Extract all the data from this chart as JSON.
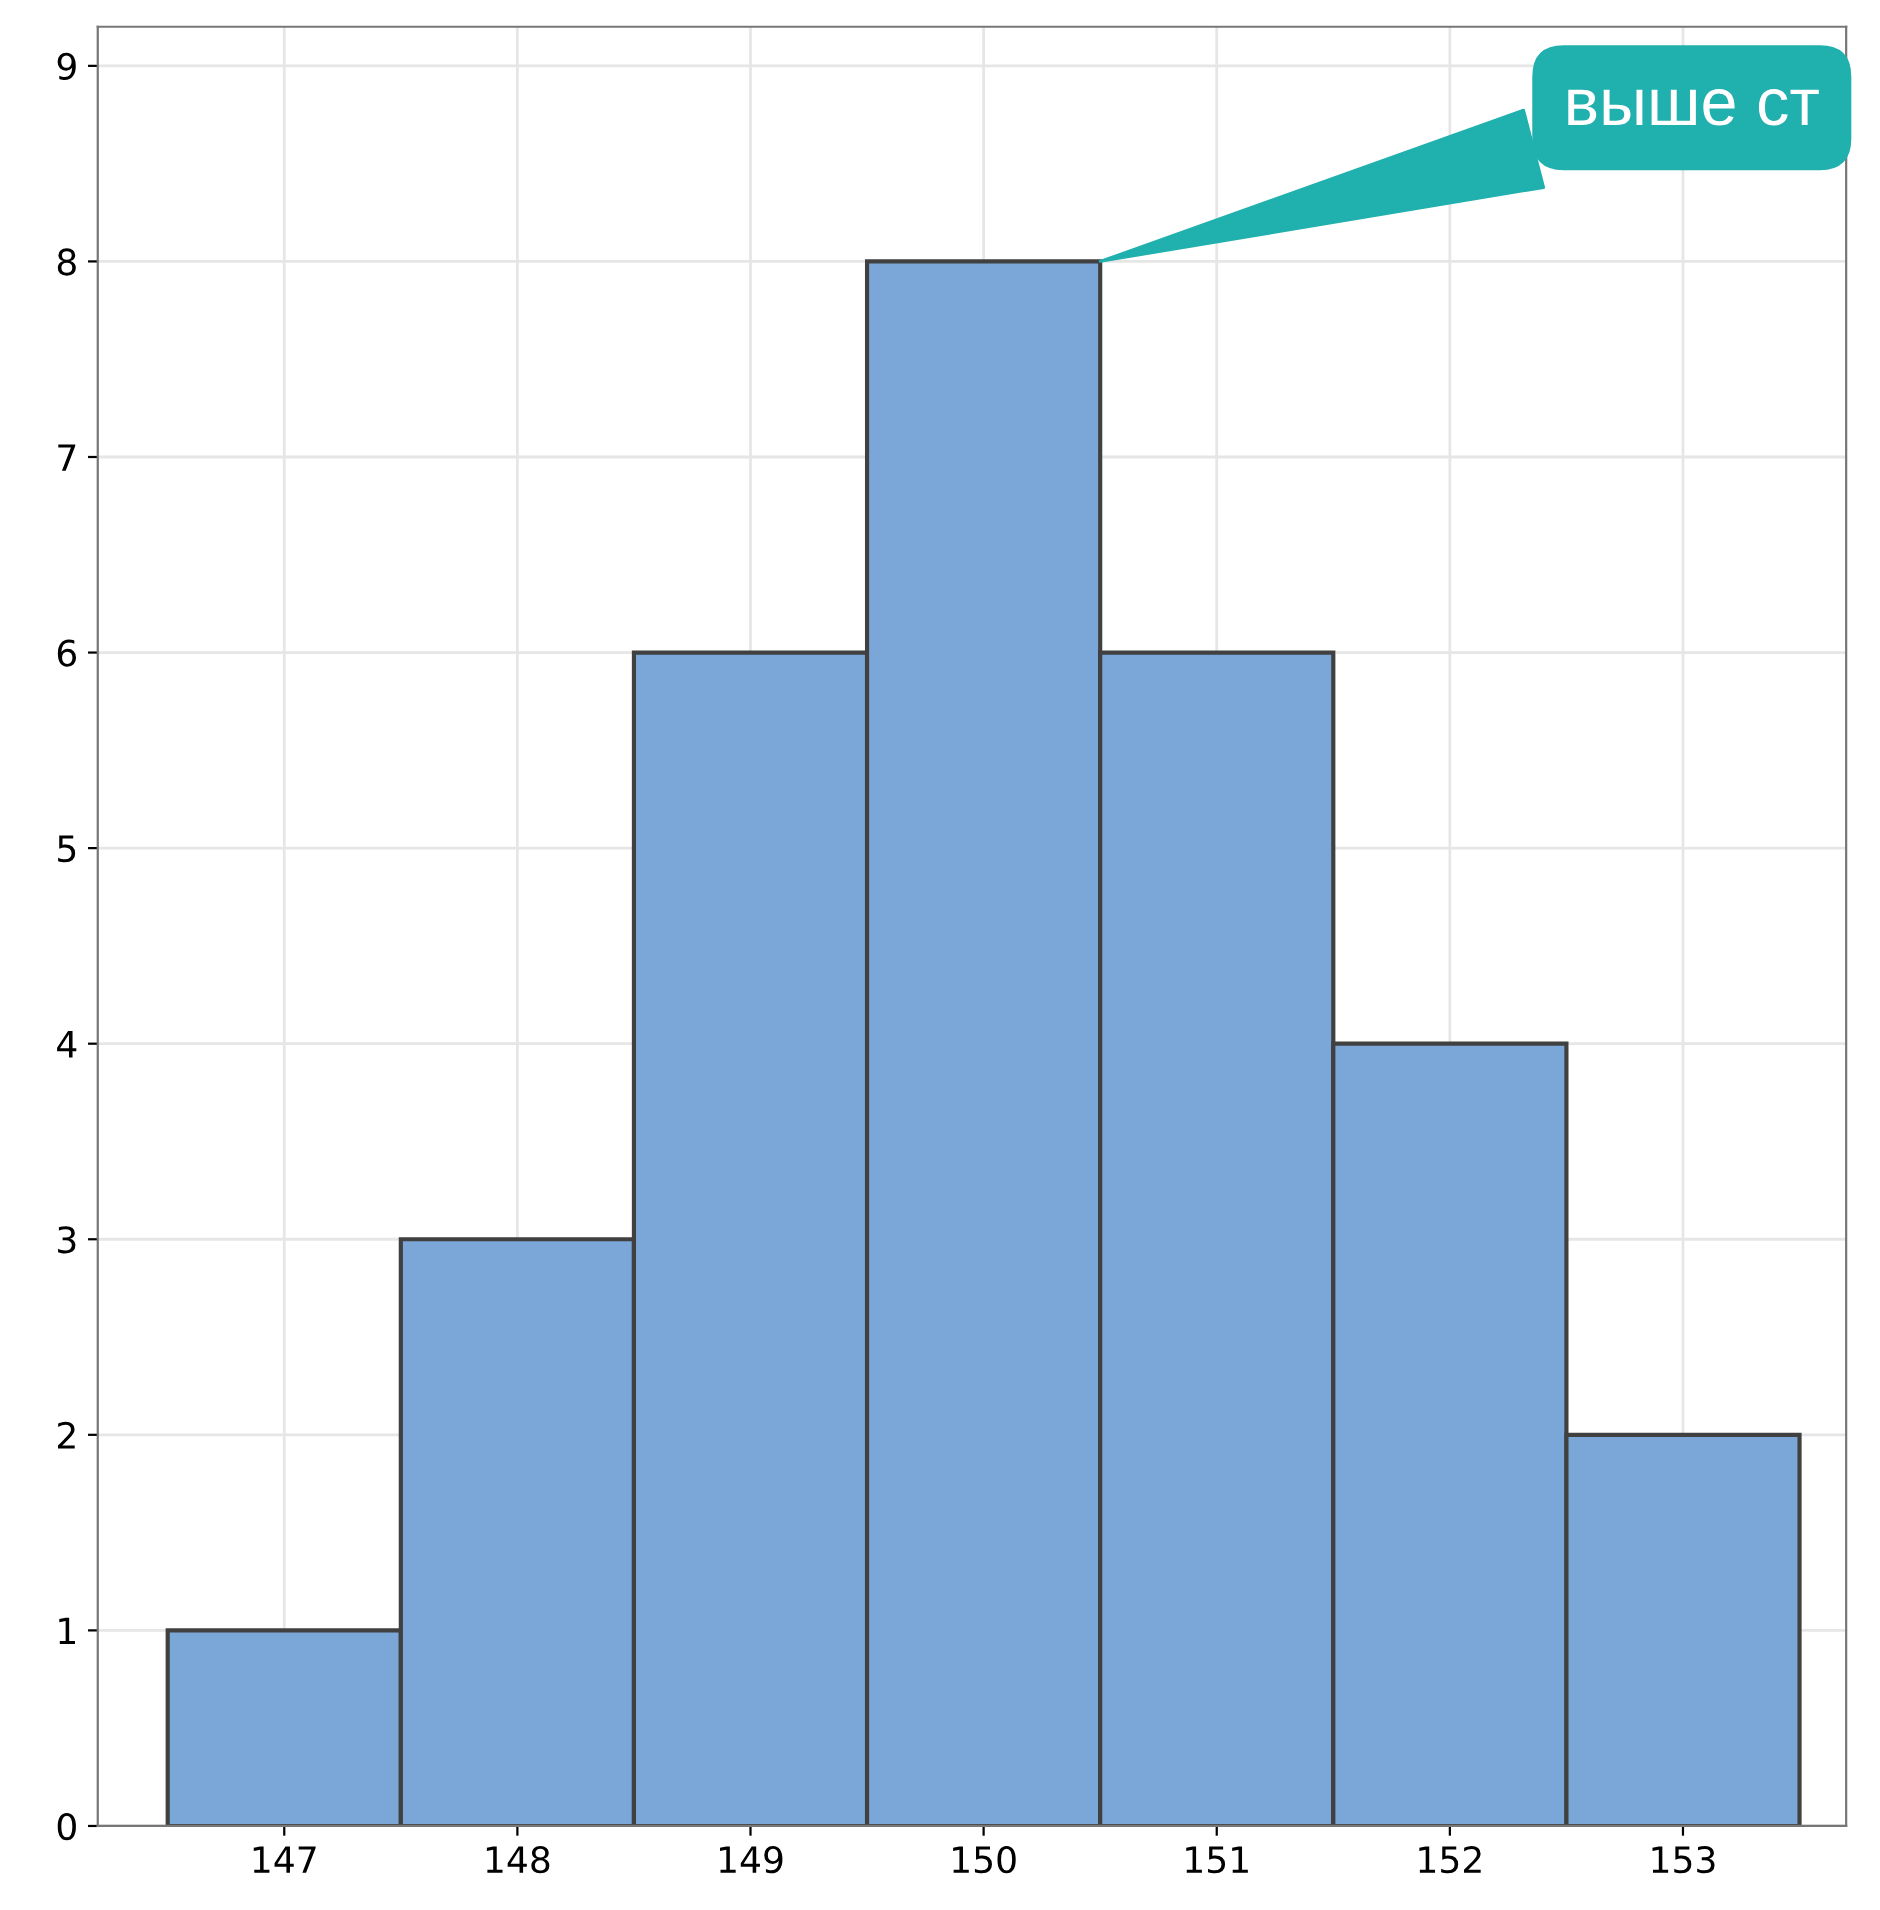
{
  "chart_data": {
    "type": "histogram",
    "bins": [
      146.5,
      147.5,
      148.5,
      149.5,
      150.5,
      151.5,
      152.5,
      153.5
    ],
    "values": [
      1,
      3,
      6,
      8,
      6,
      4,
      2
    ],
    "color": "#7ba6d8",
    "xlim": [
      146.2,
      153.7
    ],
    "ylim": [
      0,
      9.2
    ],
    "xticks": [
      147,
      148,
      149,
      150,
      151,
      152,
      153
    ],
    "yticks": [
      0,
      1,
      2,
      3,
      4,
      5,
      6,
      7,
      8,
      9
    ],
    "grid": true,
    "annotations": [
      {
        "text": "выше ст",
        "x": 150.5,
        "y": 8
      }
    ]
  }
}
